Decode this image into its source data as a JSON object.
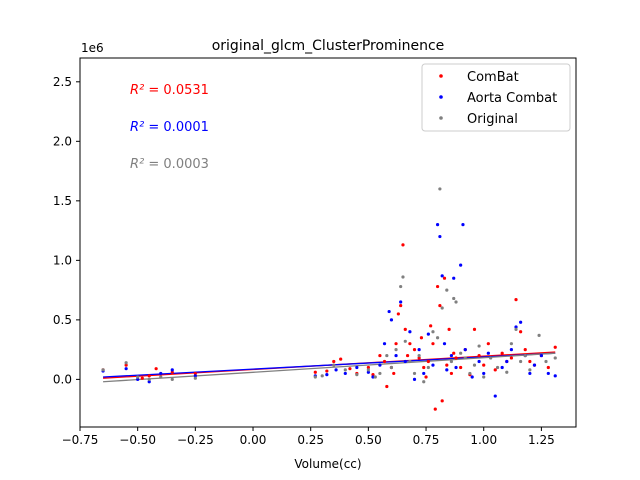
{
  "chart_data": {
    "type": "scatter",
    "title": "original_glcm_ClusterProminence",
    "xlabel": "Volume(cc)",
    "ylabel": "",
    "y_offset_label": "1e6",
    "xlim": [
      -0.75,
      1.4
    ],
    "ylim": [
      -0.4,
      2.7
    ],
    "xticks": [
      -0.75,
      -0.5,
      -0.25,
      0.0,
      0.25,
      0.5,
      0.75,
      1.0,
      1.25
    ],
    "xtick_labels": [
      "−0.75",
      "−0.50",
      "−0.25",
      "0.00",
      "0.25",
      "0.50",
      "0.75",
      "1.00",
      "1.25"
    ],
    "yticks": [
      0.0,
      0.5,
      1.0,
      1.5,
      2.0,
      2.5
    ],
    "ytick_labels": [
      "0.0",
      "0.5",
      "1.0",
      "1.5",
      "2.0",
      "2.5"
    ],
    "legend_position": "top-right",
    "annotations": [
      {
        "label": "R²",
        "value": "= 0.0531",
        "color": "#ff0000"
      },
      {
        "label": "R²",
        "value": "= 0.0001",
        "color": "#0000ff"
      },
      {
        "label": "R²",
        "value": "= 0.0003",
        "color": "#808080"
      }
    ],
    "series": [
      {
        "name": "ComBat",
        "color": "#ff0000",
        "trend": [
          [
            -0.65,
            0.01
          ],
          [
            1.31,
            0.23
          ]
        ],
        "points": [
          [
            -0.65,
            0.08
          ],
          [
            -0.55,
            0.12
          ],
          [
            -0.48,
            0.01
          ],
          [
            -0.45,
            0.03
          ],
          [
            -0.42,
            0.09
          ],
          [
            -0.35,
            0.06
          ],
          [
            -0.25,
            0.05
          ],
          [
            0.27,
            0.06
          ],
          [
            0.32,
            0.07
          ],
          [
            0.35,
            0.15
          ],
          [
            0.38,
            0.17
          ],
          [
            0.42,
            0.09
          ],
          [
            0.45,
            0.05
          ],
          [
            0.5,
            0.1
          ],
          [
            0.52,
            0.04
          ],
          [
            0.55,
            0.2
          ],
          [
            0.57,
            0.15
          ],
          [
            0.58,
            -0.06
          ],
          [
            0.6,
            0.1
          ],
          [
            0.61,
            0.05
          ],
          [
            0.62,
            0.3
          ],
          [
            0.63,
            0.55
          ],
          [
            0.64,
            0.62
          ],
          [
            0.65,
            1.13
          ],
          [
            0.66,
            0.42
          ],
          [
            0.67,
            0.2
          ],
          [
            0.68,
            0.3
          ],
          [
            0.7,
            0.25
          ],
          [
            0.72,
            0.18
          ],
          [
            0.73,
            0.35
          ],
          [
            0.74,
            0.1
          ],
          [
            0.75,
            0.02
          ],
          [
            0.76,
            0.15
          ],
          [
            0.77,
            0.45
          ],
          [
            0.78,
            0.3
          ],
          [
            0.79,
            -0.25
          ],
          [
            0.8,
            0.78
          ],
          [
            0.81,
            0.62
          ],
          [
            0.82,
            -0.18
          ],
          [
            0.83,
            0.85
          ],
          [
            0.84,
            0.12
          ],
          [
            0.85,
            0.42
          ],
          [
            0.86,
            0.05
          ],
          [
            0.87,
            0.22
          ],
          [
            0.88,
            0.18
          ],
          [
            0.9,
            0.1
          ],
          [
            0.92,
            0.25
          ],
          [
            0.94,
            0.04
          ],
          [
            0.96,
            0.42
          ],
          [
            0.98,
            0.2
          ],
          [
            1.0,
            0.12
          ],
          [
            1.02,
            0.3
          ],
          [
            1.05,
            0.08
          ],
          [
            1.08,
            0.22
          ],
          [
            1.1,
            0.15
          ],
          [
            1.12,
            0.18
          ],
          [
            1.14,
            0.67
          ],
          [
            1.16,
            0.4
          ],
          [
            1.18,
            0.25
          ],
          [
            1.2,
            0.15
          ],
          [
            1.22,
            0.12
          ],
          [
            1.25,
            0.2
          ],
          [
            1.28,
            0.1
          ],
          [
            1.31,
            0.27
          ]
        ]
      },
      {
        "name": "Aorta Combat",
        "color": "#0000ff",
        "trend": [
          [
            -0.65,
            0.02
          ],
          [
            1.31,
            0.22
          ]
        ],
        "points": [
          [
            -0.65,
            0.07
          ],
          [
            -0.55,
            0.09
          ],
          [
            -0.5,
            0.0
          ],
          [
            -0.45,
            -0.02
          ],
          [
            -0.4,
            0.05
          ],
          [
            -0.35,
            0.08
          ],
          [
            -0.25,
            0.03
          ],
          [
            0.27,
            0.03
          ],
          [
            0.32,
            0.04
          ],
          [
            0.36,
            0.08
          ],
          [
            0.4,
            0.05
          ],
          [
            0.45,
            0.1
          ],
          [
            0.5,
            0.06
          ],
          [
            0.52,
            0.02
          ],
          [
            0.55,
            0.12
          ],
          [
            0.57,
            0.3
          ],
          [
            0.59,
            0.57
          ],
          [
            0.6,
            0.5
          ],
          [
            0.62,
            0.2
          ],
          [
            0.64,
            0.65
          ],
          [
            0.66,
            0.15
          ],
          [
            0.68,
            0.4
          ],
          [
            0.7,
            0.0
          ],
          [
            0.72,
            0.25
          ],
          [
            0.74,
            0.05
          ],
          [
            0.76,
            0.38
          ],
          [
            0.78,
            0.12
          ],
          [
            0.8,
            1.3
          ],
          [
            0.81,
            1.2
          ],
          [
            0.82,
            0.87
          ],
          [
            0.83,
            0.3
          ],
          [
            0.84,
            0.08
          ],
          [
            0.86,
            0.2
          ],
          [
            0.87,
            0.85
          ],
          [
            0.88,
            0.1
          ],
          [
            0.9,
            0.96
          ],
          [
            0.91,
            1.3
          ],
          [
            0.92,
            0.25
          ],
          [
            0.95,
            0.02
          ],
          [
            0.98,
            0.15
          ],
          [
            1.0,
            0.05
          ],
          [
            1.02,
            0.22
          ],
          [
            1.05,
            -0.14
          ],
          [
            1.08,
            0.1
          ],
          [
            1.1,
            0.15
          ],
          [
            1.12,
            0.25
          ],
          [
            1.14,
            0.44
          ],
          [
            1.16,
            0.48
          ],
          [
            1.18,
            0.2
          ],
          [
            1.2,
            0.05
          ],
          [
            1.22,
            0.12
          ],
          [
            1.25,
            0.2
          ],
          [
            1.28,
            0.05
          ],
          [
            1.31,
            0.03
          ]
        ]
      },
      {
        "name": "Original",
        "color": "#808080",
        "trend": [
          [
            -0.65,
            -0.02
          ],
          [
            1.31,
            0.22
          ]
        ],
        "points": [
          [
            -0.65,
            0.08
          ],
          [
            -0.55,
            0.14
          ],
          [
            -0.5,
            0.02
          ],
          [
            -0.45,
            0.0
          ],
          [
            -0.4,
            0.02
          ],
          [
            -0.35,
            0.0
          ],
          [
            -0.25,
            0.01
          ],
          [
            0.27,
            0.02
          ],
          [
            0.3,
            0.03
          ],
          [
            0.35,
            0.12
          ],
          [
            0.4,
            0.08
          ],
          [
            0.45,
            0.04
          ],
          [
            0.5,
            0.08
          ],
          [
            0.53,
            0.02
          ],
          [
            0.55,
            0.05
          ],
          [
            0.58,
            0.2
          ],
          [
            0.6,
            0.1
          ],
          [
            0.62,
            0.25
          ],
          [
            0.64,
            0.78
          ],
          [
            0.65,
            0.86
          ],
          [
            0.66,
            0.32
          ],
          [
            0.68,
            0.15
          ],
          [
            0.7,
            0.05
          ],
          [
            0.72,
            0.2
          ],
          [
            0.74,
            -0.02
          ],
          [
            0.76,
            0.1
          ],
          [
            0.78,
            0.4
          ],
          [
            0.8,
            0.35
          ],
          [
            0.81,
            1.6
          ],
          [
            0.82,
            0.6
          ],
          [
            0.84,
            0.75
          ],
          [
            0.86,
            0.15
          ],
          [
            0.87,
            0.68
          ],
          [
            0.88,
            0.65
          ],
          [
            0.9,
            0.22
          ],
          [
            0.92,
            0.18
          ],
          [
            0.94,
            0.05
          ],
          [
            0.96,
            0.12
          ],
          [
            0.98,
            0.28
          ],
          [
            1.0,
            0.02
          ],
          [
            1.03,
            0.18
          ],
          [
            1.06,
            0.1
          ],
          [
            1.1,
            0.06
          ],
          [
            1.12,
            0.3
          ],
          [
            1.14,
            0.42
          ],
          [
            1.16,
            0.15
          ],
          [
            1.18,
            0.2
          ],
          [
            1.2,
            0.08
          ],
          [
            1.24,
            0.37
          ],
          [
            1.27,
            0.15
          ],
          [
            1.31,
            0.18
          ]
        ]
      }
    ]
  }
}
